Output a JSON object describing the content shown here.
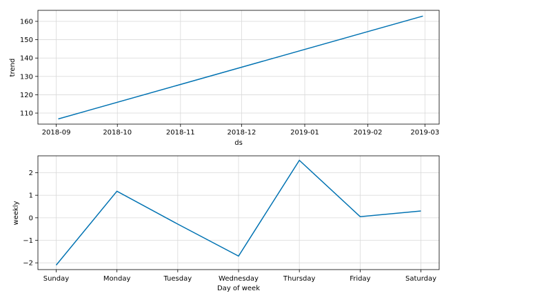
{
  "chart_data": [
    {
      "type": "line",
      "xlabel": "ds",
      "ylabel": "trend",
      "x_type": "date",
      "xlim": [
        "2018-08-23",
        "2019-03-08"
      ],
      "ylim": [
        104,
        166
      ],
      "x_ticks": [
        {
          "value": "2018-09-01",
          "label": "2018-09"
        },
        {
          "value": "2018-10-01",
          "label": "2018-10"
        },
        {
          "value": "2018-11-01",
          "label": "2018-11"
        },
        {
          "value": "2018-12-01",
          "label": "2018-12"
        },
        {
          "value": "2019-01-01",
          "label": "2019-01"
        },
        {
          "value": "2019-02-01",
          "label": "2019-02"
        },
        {
          "value": "2019-03-01",
          "label": "2019-03"
        }
      ],
      "y_ticks": [
        110,
        120,
        130,
        140,
        150,
        160
      ],
      "grid": true,
      "line_color": "#0072B2",
      "series": [
        {
          "x": [
            "2018-09-02",
            "2019-02-28"
          ],
          "y": [
            106.8,
            162.9
          ]
        }
      ]
    },
    {
      "type": "line",
      "xlabel": "Day of week",
      "ylabel": "weekly",
      "categories": [
        "Sunday",
        "Monday",
        "Tuesday",
        "Wednesday",
        "Thursday",
        "Friday",
        "Saturday"
      ],
      "ylim": [
        -2.3,
        2.75
      ],
      "y_ticks": [
        -2,
        -1,
        0,
        1,
        2
      ],
      "y_tick_labels": [
        "−2",
        "−1",
        "0",
        "1",
        "2"
      ],
      "grid": true,
      "line_color": "#0072B2",
      "series": [
        {
          "values": [
            -2.1,
            1.18,
            -0.28,
            -1.7,
            2.55,
            0.05,
            0.3
          ]
        }
      ]
    }
  ]
}
